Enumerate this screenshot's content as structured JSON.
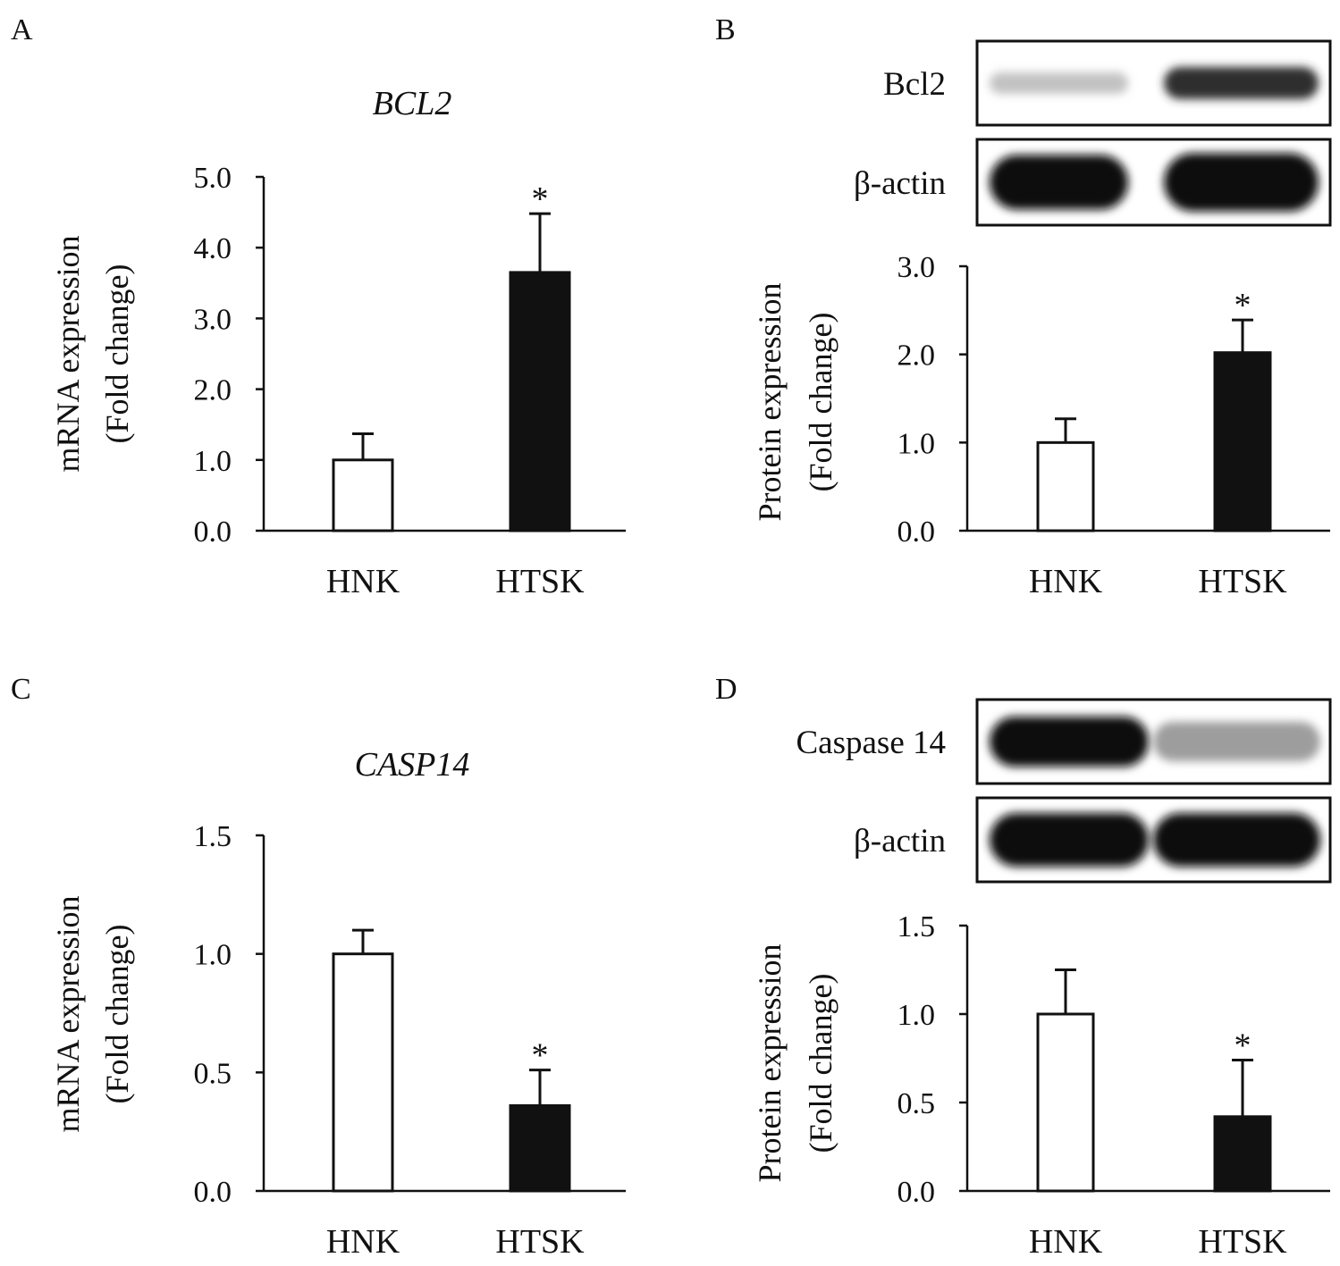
{
  "chart_data": [
    {
      "panel": "A",
      "type": "bar",
      "title": "BCL2",
      "ylabel": [
        "mRNA expression",
        "(Fold change)"
      ],
      "categories": [
        "HNK",
        "HTSK"
      ],
      "values": [
        1.0,
        3.65
      ],
      "errors": [
        0.37,
        0.83
      ],
      "significance": [
        "",
        "*"
      ],
      "bar_colors": [
        "#ffffff",
        "#111111"
      ],
      "ylim": [
        0,
        5
      ],
      "yticks": [
        "0.0",
        "1.0",
        "2.0",
        "3.0",
        "4.0",
        "5.0"
      ]
    },
    {
      "panel": "B",
      "type": "bar",
      "title": "",
      "ylabel": [
        "Protein expression",
        "(Fold change)"
      ],
      "categories": [
        "HNK",
        "HTSK"
      ],
      "values": [
        1.0,
        2.02
      ],
      "errors": [
        0.27,
        0.37
      ],
      "significance": [
        "",
        "*"
      ],
      "bar_colors": [
        "#ffffff",
        "#111111"
      ],
      "ylim": [
        0,
        3
      ],
      "yticks": [
        "0.0",
        "1.0",
        "2.0",
        "3.0"
      ],
      "blots": [
        {
          "label": "Bcl2",
          "intensity": [
            0.25,
            0.85
          ],
          "thickness": [
            0.3,
            0.45
          ]
        },
        {
          "label": "β-actin",
          "intensity": [
            1.0,
            1.0
          ],
          "thickness": [
            0.75,
            0.8
          ]
        }
      ]
    },
    {
      "panel": "C",
      "type": "bar",
      "title": "CASP14",
      "ylabel": [
        "mRNA expression",
        "(Fold change)"
      ],
      "categories": [
        "HNK",
        "HTSK"
      ],
      "values": [
        1.0,
        0.36
      ],
      "errors": [
        0.1,
        0.15
      ],
      "significance": [
        "",
        "*"
      ],
      "bar_colors": [
        "#ffffff",
        "#111111"
      ],
      "ylim": [
        0,
        1.5
      ],
      "yticks": [
        "0.0",
        "0.5",
        "1.0",
        "1.5"
      ]
    },
    {
      "panel": "D",
      "type": "bar",
      "title": "",
      "ylabel": [
        "Protein expression",
        "(Fold change)"
      ],
      "categories": [
        "HNK",
        "HTSK"
      ],
      "values": [
        1.0,
        0.42
      ],
      "errors": [
        0.25,
        0.32
      ],
      "significance": [
        "",
        "*"
      ],
      "bar_colors": [
        "#ffffff",
        "#111111"
      ],
      "ylim": [
        0,
        1.5
      ],
      "yticks": [
        "0.0",
        "0.5",
        "1.0",
        "1.5"
      ],
      "blots": [
        {
          "label": "Caspase 14",
          "intensity": [
            1.0,
            0.4
          ],
          "thickness": [
            0.7,
            0.55
          ]
        },
        {
          "label": "β-actin",
          "intensity": [
            1.0,
            1.0
          ],
          "thickness": [
            0.75,
            0.75
          ]
        }
      ]
    }
  ]
}
